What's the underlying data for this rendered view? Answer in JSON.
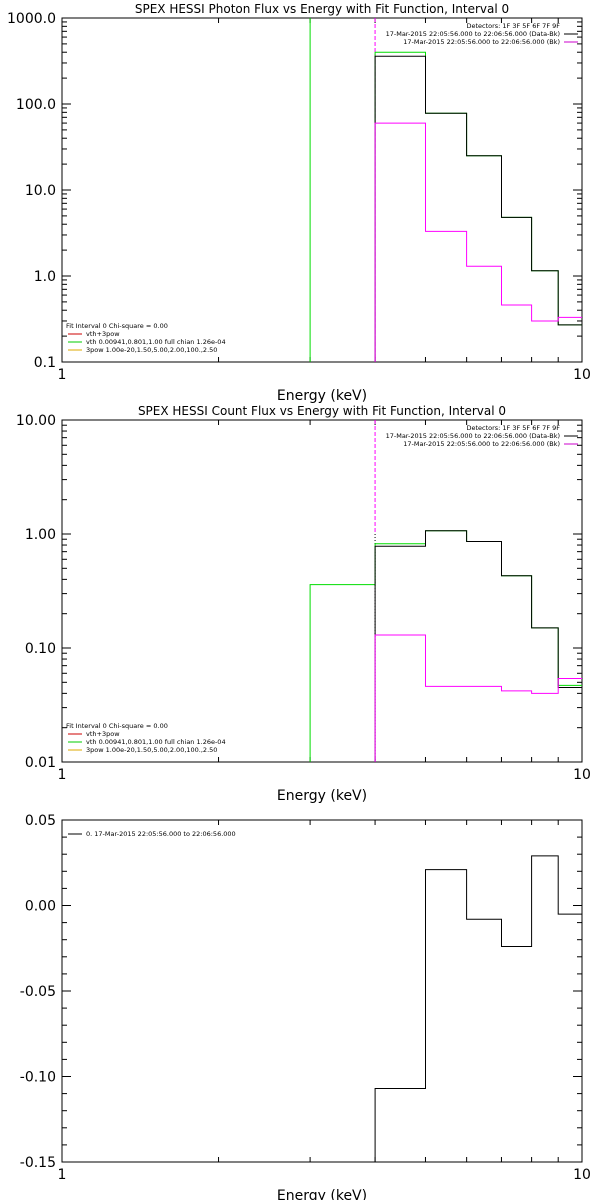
{
  "chart_data": [
    {
      "type": "line",
      "title": "SPEX HESSI Photon Flux vs Energy with Fit Function, Interval 0",
      "xlabel": "Energy (keV)",
      "ylabel": "",
      "xscale": "log",
      "yscale": "log",
      "xlim": [
        1,
        10
      ],
      "ylim": [
        0.1,
        1000
      ],
      "xticks": [
        1,
        10
      ],
      "xtick_labels": [
        "1",
        "10"
      ],
      "yticks": [
        0.1,
        1,
        10,
        100,
        1000
      ],
      "ytick_labels": [
        "0.1",
        "1.0",
        "10.0",
        "100.0",
        "1000.0"
      ],
      "header": [
        {
          "text": "Detectors: 1F 3F 5F 6F 7F 9F",
          "color": ""
        },
        {
          "text": "17-Mar-2015 22:05:56.000 to 22:06:56.000 (Data-Bk)",
          "color": "#000000"
        },
        {
          "text": "17-Mar-2015 22:05:56.000 to 22:06:56.000 (Bk)",
          "color": "#cc00cc"
        }
      ],
      "legend": [
        {
          "text": "Fit Interval 0   Chi-square = 0.00",
          "color": ""
        },
        {
          "text": "vth+3pow",
          "color": "#cc0000"
        },
        {
          "text": "vth 0.00941,0.801,1.00  full chian 1.26e-04",
          "color": "#00cc00"
        },
        {
          "text": "3pow 1.00e-20,1.50,5.00,2.00,100.,2.50",
          "color": "#ddaa00"
        }
      ],
      "vlines": [
        {
          "x": 3.0,
          "color": "#00dd00",
          "style": "solid"
        },
        {
          "x": 4.0,
          "color": "#ff00ff",
          "style": "dashed"
        }
      ],
      "series": [
        {
          "color": "#00dd00",
          "edges": [
            4.0,
            5.0,
            6.0,
            7.0,
            8.0,
            9.0,
            10.0
          ],
          "values": [
            400,
            78,
            25,
            4.8,
            1.15,
            0.27
          ]
        },
        {
          "color": "#000000",
          "edges": [
            4.0,
            5.0,
            6.0,
            7.0,
            8.0,
            9.0,
            10.0
          ],
          "values": [
            360,
            78,
            25,
            4.8,
            1.15,
            0.27
          ]
        },
        {
          "color": "#ff00ff",
          "edges": [
            4.0,
            5.0,
            6.0,
            7.0,
            8.0,
            9.0,
            10.0
          ],
          "values": [
            60,
            3.3,
            1.3,
            0.46,
            0.3,
            0.33
          ]
        }
      ]
    },
    {
      "type": "line",
      "title": "SPEX HESSI Count Flux vs Energy with Fit Function, Interval 0",
      "xlabel": "Energy (keV)",
      "ylabel": "",
      "xscale": "log",
      "yscale": "log",
      "xlim": [
        1,
        10
      ],
      "ylim": [
        0.01,
        10
      ],
      "xticks": [
        1,
        10
      ],
      "xtick_labels": [
        "1",
        "10"
      ],
      "yticks": [
        0.01,
        0.1,
        1,
        10
      ],
      "ytick_labels": [
        "0.01",
        "0.10",
        "1.00",
        "10.00"
      ],
      "header": [
        {
          "text": "Detectors: 1F 3F 5F 6F 7F 9F",
          "color": ""
        },
        {
          "text": "17-Mar-2015 22:05:56.000 to 22:06:56.000 (Data-Bk)",
          "color": "#000000"
        },
        {
          "text": "17-Mar-2015 22:05:56.000 to 22:06:56.000 (Bk)",
          "color": "#cc00cc"
        }
      ],
      "legend": [
        {
          "text": "Fit Interval 0   Chi-square = 0.00",
          "color": ""
        },
        {
          "text": "vth+3pow",
          "color": "#cc0000"
        },
        {
          "text": "vth 0.00941,0.801,1.00  full chian 1.26e-04",
          "color": "#00cc00"
        },
        {
          "text": "3pow 1.00e-20,1.50,5.00,2.00,100.,2.50",
          "color": "#ddaa00"
        }
      ],
      "vlines": [
        {
          "x": 4.0,
          "color": "#000000",
          "style": "dotted",
          "from": 1.0
        },
        {
          "x": 4.0,
          "color": "#ff00ff",
          "style": "dashed",
          "to": 1.0
        }
      ],
      "series": [
        {
          "color": "#00dd00",
          "edges": [
            3.0,
            4.0,
            5.0,
            6.0,
            7.0,
            8.0,
            9.0,
            10.0
          ],
          "values": [
            0.36,
            0.82,
            1.07,
            0.86,
            0.43,
            0.15,
            0.047
          ]
        },
        {
          "color": "#000000",
          "edges": [
            4.0,
            5.0,
            6.0,
            7.0,
            8.0,
            9.0,
            10.0
          ],
          "values": [
            0.78,
            1.07,
            0.86,
            0.43,
            0.15,
            0.045
          ]
        },
        {
          "color": "#ff00ff",
          "edges": [
            4.0,
            5.0,
            6.0,
            7.0,
            8.0,
            9.0,
            10.0
          ],
          "values": [
            0.13,
            0.046,
            0.046,
            0.042,
            0.04,
            0.054
          ]
        }
      ]
    },
    {
      "type": "line",
      "title": "",
      "xlabel": "Energy (keV)",
      "ylabel": "",
      "xscale": "log",
      "yscale": "linear",
      "xlim": [
        1,
        10
      ],
      "ylim": [
        -0.15,
        0.05
      ],
      "xticks": [
        1,
        10
      ],
      "xtick_labels": [
        "1",
        "10"
      ],
      "yticks": [
        -0.15,
        -0.1,
        -0.05,
        0,
        0.05
      ],
      "ytick_labels": [
        "-0.15",
        "-0.10",
        "-0.05",
        "0.00",
        "0.05"
      ],
      "header": [],
      "legend": [
        {
          "text": "0. 17-Mar-2015 22:05:56.000 to 22:06:56.000",
          "color": "#000000"
        }
      ],
      "vlines": [],
      "series": [
        {
          "color": "#000000",
          "edges": [
            4.0,
            5.0,
            6.0,
            7.0,
            8.0,
            9.0,
            10.0
          ],
          "values": [
            -0.107,
            0.021,
            -0.008,
            -0.024,
            0.029,
            -0.005
          ]
        }
      ]
    }
  ]
}
